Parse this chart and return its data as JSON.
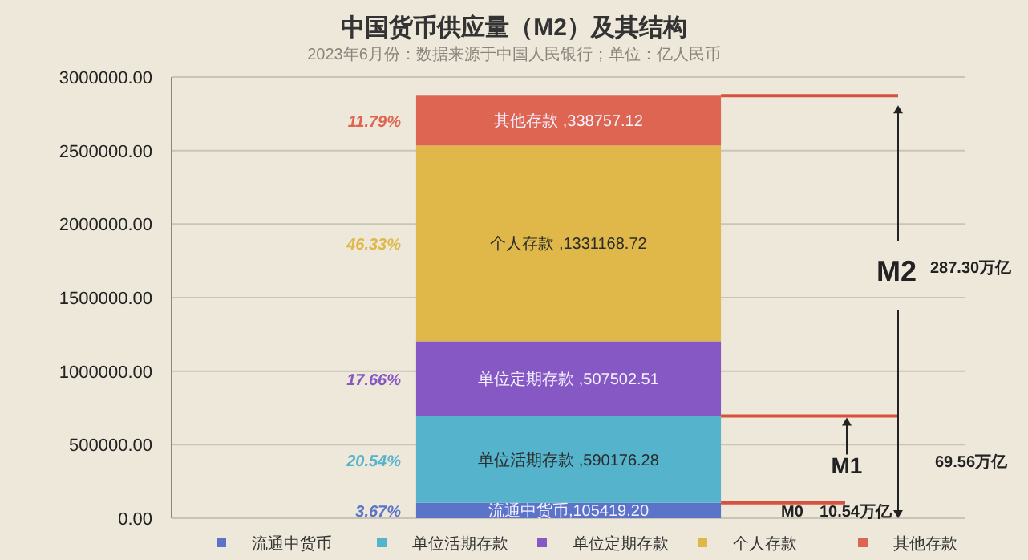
{
  "chart_data": {
    "type": "bar",
    "stacked": true,
    "title": "中国货币供应量（M2）及其结构",
    "subtitle": "2023年6月份：数据来源于中国人民银行；单位：亿人民币",
    "categories": [
      null
    ],
    "ylim": [
      0,
      3000000
    ],
    "yticks": [
      {
        "value": 0,
        "label": "0.00"
      },
      {
        "value": 500000,
        "label": "500000.00"
      },
      {
        "value": 1000000,
        "label": "1000000.00"
      },
      {
        "value": 1500000,
        "label": "1500000.00"
      },
      {
        "value": 2000000,
        "label": "2000000.00"
      },
      {
        "value": 2500000,
        "label": "2500000.00"
      },
      {
        "value": 3000000,
        "label": "3000000.00"
      }
    ],
    "grid": "y",
    "legend": "bottom",
    "series": [
      {
        "name": "流通中货币",
        "color": "#5b74c9",
        "values": [
          105419.2
        ],
        "value_labels": [
          "流通中货币,105419.20"
        ]
      },
      {
        "name": "单位活期存款",
        "color": "#55b4cc",
        "values": [
          590176.28
        ],
        "value_labels": [
          "单位活期存款 ,590176.28"
        ]
      },
      {
        "name": "单位定期存款",
        "color": "#8658c4",
        "values": [
          507502.51
        ],
        "value_labels": [
          "单位定期存款 ,507502.51"
        ]
      },
      {
        "name": "个人存款",
        "color": "#e0b84a",
        "values": [
          1331168.72
        ],
        "value_labels": [
          "个人存款 ,1331168.72"
        ]
      },
      {
        "name": "其他存款",
        "color": "#dd6552",
        "values": [
          338757.12
        ],
        "value_labels": [
          "其他存款 ,338757.12"
        ]
      }
    ],
    "annotations": [
      "3.67%",
      "20.54%",
      "17.66%",
      "46.33%",
      "11.79%",
      "10.54万亿",
      "69.56万亿",
      "287.30万亿"
    ],
    "ref_lines": [
      {
        "axis": "y",
        "value": 105419.2,
        "label": "M0",
        "color": "#d9503c"
      },
      {
        "axis": "y",
        "value": 695595.48,
        "label": "M1",
        "color": "#d9503c"
      },
      {
        "axis": "y",
        "value": 2873023.83,
        "label": "M2",
        "color": "#d9503c"
      }
    ]
  }
}
